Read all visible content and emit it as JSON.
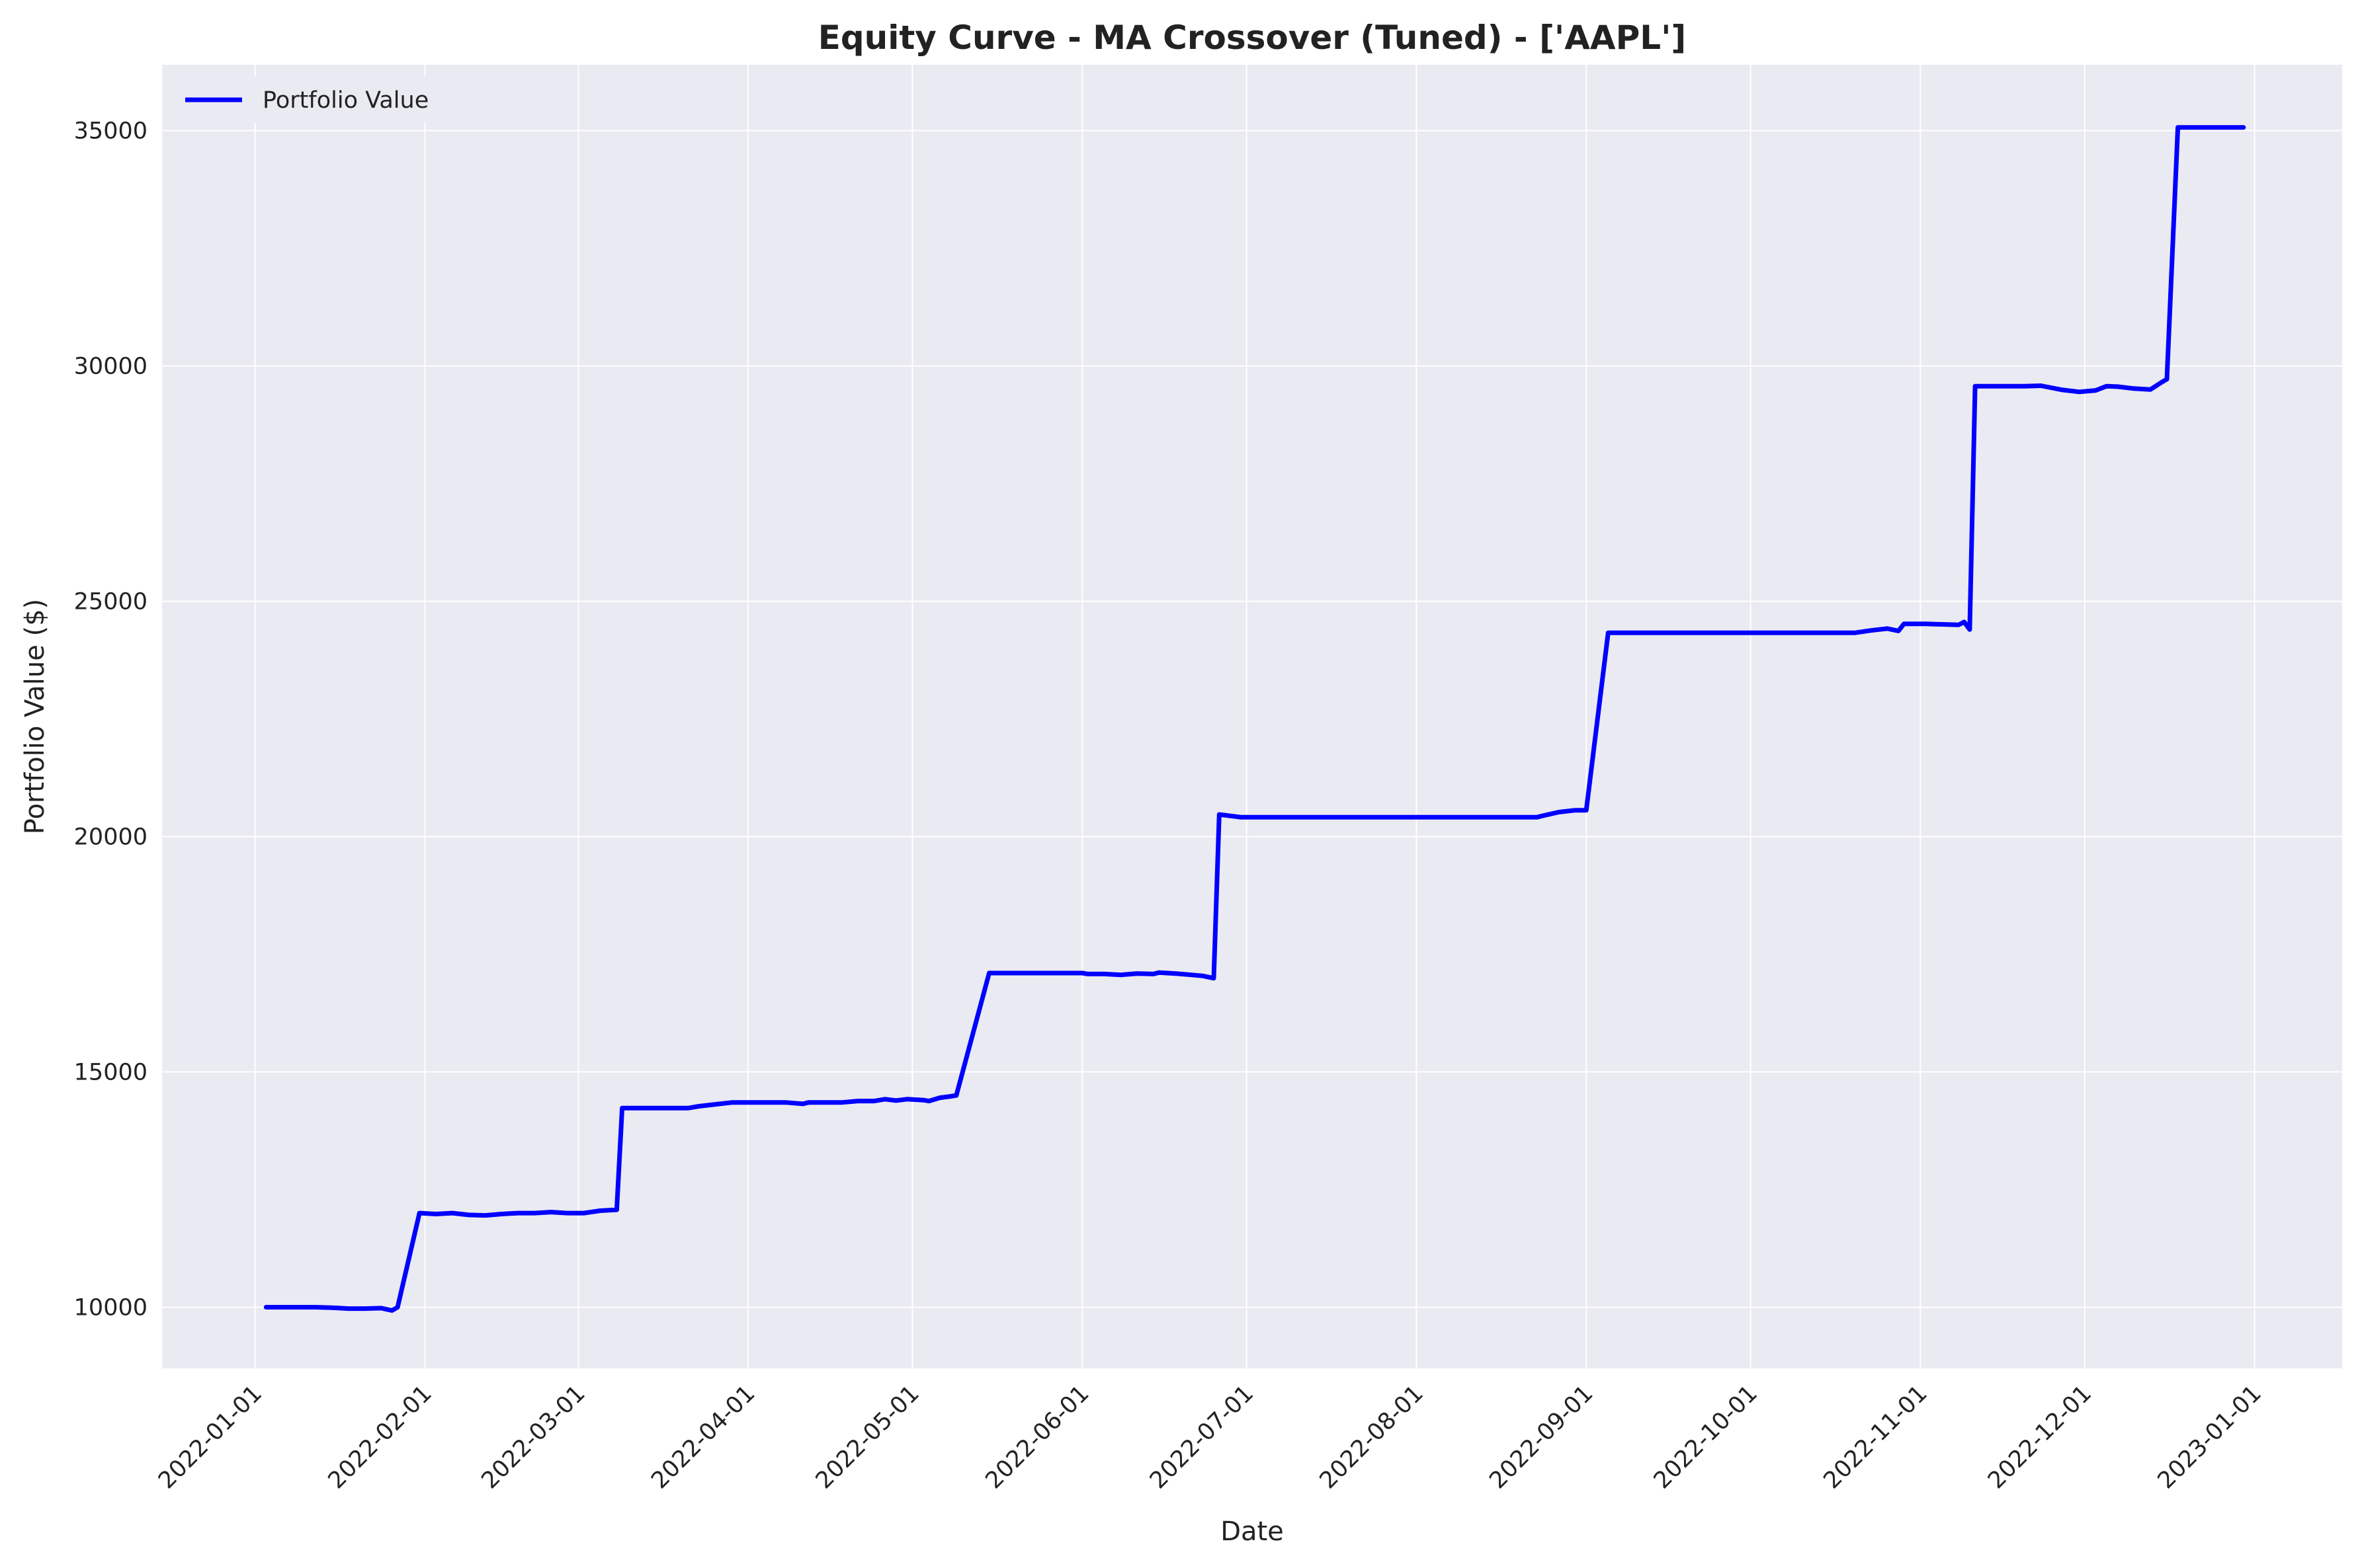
{
  "chart_data": {
    "type": "line",
    "title": "Equity Curve - MA Crossover (Tuned) - ['AAPL']",
    "xlabel": "Date",
    "ylabel": "Portfolio Value ($)",
    "xlim": [
      "2021-12-15",
      "2023-01-17"
    ],
    "ylim": [
      8700,
      36400
    ],
    "x_ticks": [
      "2022-01-01",
      "2022-02-01",
      "2022-03-01",
      "2022-04-01",
      "2022-05-01",
      "2022-06-01",
      "2022-07-01",
      "2022-08-01",
      "2022-09-01",
      "2022-10-01",
      "2022-11-01",
      "2022-12-01",
      "2023-01-01"
    ],
    "y_ticks": [
      "10000",
      "15000",
      "20000",
      "25000",
      "30000",
      "35000"
    ],
    "grid": true,
    "legend": "upper-left",
    "colors": {
      "background": "#eaeaf2",
      "grid": "#ffffff",
      "line": "#0000ff"
    },
    "series": [
      {
        "name": "Portfolio Value",
        "x": [
          "2022-01-03",
          "2022-01-06",
          "2022-01-09",
          "2022-01-12",
          "2022-01-15",
          "2022-01-18",
          "2022-01-21",
          "2022-01-24",
          "2022-01-26",
          "2022-01-27",
          "2022-01-31",
          "2022-02-03",
          "2022-02-06",
          "2022-02-09",
          "2022-02-12",
          "2022-02-15",
          "2022-02-18",
          "2022-02-21",
          "2022-02-24",
          "2022-02-27",
          "2022-03-02",
          "2022-03-05",
          "2022-03-08",
          "2022-03-09",
          "2022-03-15",
          "2022-03-21",
          "2022-03-23",
          "2022-03-26",
          "2022-03-29",
          "2022-04-01",
          "2022-04-08",
          "2022-04-11",
          "2022-04-12",
          "2022-04-15",
          "2022-04-18",
          "2022-04-21",
          "2022-04-24",
          "2022-04-26",
          "2022-04-28",
          "2022-04-30",
          "2022-05-03",
          "2022-05-04",
          "2022-05-06",
          "2022-05-08",
          "2022-05-09",
          "2022-05-15",
          "2022-05-25",
          "2022-06-01",
          "2022-06-02",
          "2022-06-05",
          "2022-06-08",
          "2022-06-11",
          "2022-06-14",
          "2022-06-15",
          "2022-06-18",
          "2022-06-21",
          "2022-06-23",
          "2022-06-25",
          "2022-06-26",
          "2022-06-30",
          "2022-07-15",
          "2022-08-01",
          "2022-08-15",
          "2022-08-23",
          "2022-08-24",
          "2022-08-27",
          "2022-08-30",
          "2022-09-01",
          "2022-09-05",
          "2022-09-15",
          "2022-10-01",
          "2022-10-15",
          "2022-10-20",
          "2022-10-23",
          "2022-10-26",
          "2022-10-28",
          "2022-10-29",
          "2022-11-02",
          "2022-11-05",
          "2022-11-08",
          "2022-11-09",
          "2022-11-10",
          "2022-11-11",
          "2022-11-14",
          "2022-11-17",
          "2022-11-20",
          "2022-11-23",
          "2022-11-27",
          "2022-11-30",
          "2022-12-03",
          "2022-12-05",
          "2022-12-07",
          "2022-12-10",
          "2022-12-13",
          "2022-12-15",
          "2022-12-16",
          "2022-12-18",
          "2022-12-22",
          "2022-12-30"
        ],
        "values": [
          10000,
          10000,
          10000,
          10000,
          9990,
          9970,
          9970,
          9980,
          9930,
          10000,
          12000,
          11980,
          12000,
          11960,
          11950,
          11980,
          12000,
          12000,
          12020,
          12000,
          12000,
          12050,
          12070,
          14230,
          14230,
          14230,
          14270,
          14310,
          14350,
          14350,
          14350,
          14320,
          14350,
          14350,
          14350,
          14380,
          14380,
          14420,
          14390,
          14420,
          14400,
          14380,
          14450,
          14480,
          14500,
          17100,
          17100,
          17100,
          17080,
          17080,
          17060,
          17090,
          17080,
          17110,
          17090,
          17060,
          17040,
          16990,
          20470,
          20410,
          20410,
          20410,
          20410,
          20410,
          20440,
          20520,
          20560,
          20560,
          24330,
          24330,
          24330,
          24330,
          24330,
          24380,
          24420,
          24370,
          24520,
          24520,
          24510,
          24500,
          24560,
          24400,
          29570,
          29570,
          29570,
          29570,
          29580,
          29490,
          29450,
          29480,
          29570,
          29560,
          29520,
          29500,
          29650,
          29720,
          35070,
          35070,
          35070
        ]
      }
    ]
  }
}
